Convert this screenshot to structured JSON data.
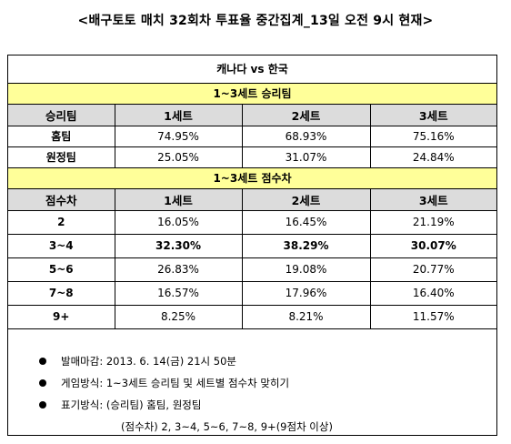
{
  "title": "<배구토토 매치 32회차 투표율 중간집계_13일 오전 9시 현재>",
  "match": "캐나다 vs 한국",
  "section1": {
    "title": "1~3세트 승리팀",
    "headers": [
      "승리팀",
      "1세트",
      "2세트",
      "3세트"
    ],
    "rows": [
      {
        "label": "홈팀",
        "values": [
          "74.95%",
          "68.93%",
          "75.16%"
        ]
      },
      {
        "label": "원정팀",
        "values": [
          "25.05%",
          "31.07%",
          "24.84%"
        ]
      }
    ]
  },
  "section2": {
    "title": "1~3세트 점수차",
    "headers": [
      "점수차",
      "1세트",
      "2세트",
      "3세트"
    ],
    "rows": [
      {
        "label": "2",
        "values": [
          "16.05%",
          "16.45%",
          "21.19%"
        ]
      },
      {
        "label": "3~4",
        "values": [
          "32.30%",
          "38.29%",
          "30.07%"
        ]
      },
      {
        "label": "5~6",
        "values": [
          "26.83%",
          "19.08%",
          "20.77%"
        ]
      },
      {
        "label": "7~8",
        "values": [
          "16.57%",
          "17.96%",
          "16.40%"
        ]
      },
      {
        "label": "9+",
        "values": [
          "8.25%",
          "8.21%",
          "11.57%"
        ]
      }
    ]
  },
  "notes": [
    "발매마감: 2013. 6. 14(금) 21시 50분",
    "게임방식: 1~3세트 승리팀 및 세트별 점수차 맞히기",
    "표기방식: (승리팀) 홈팀, 원정팀",
    "(점수차) 2, 3~4, 5~6, 7~8, 9+(9점차 이상)"
  ]
}
